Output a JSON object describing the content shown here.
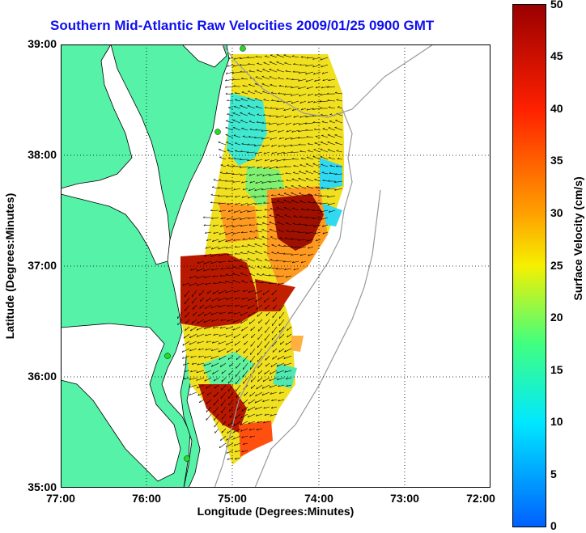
{
  "title": "Southern Mid-Atlantic Raw Velocities 2009/01/25 0900 GMT",
  "x_axis": {
    "label": "Longitude (Degrees:Minutes)",
    "ticks": [
      "77:00",
      "76:00",
      "75:00",
      "74:00",
      "73:00",
      "72:00"
    ]
  },
  "y_axis": {
    "label": "Latitude (Degrees:Minutes)",
    "ticks": [
      "39:00",
      "38:00",
      "37:00",
      "36:00",
      "35:00"
    ]
  },
  "colorbar": {
    "label": "Surface Velocity (cm/s)",
    "ticks": [
      "50",
      "45",
      "40",
      "35",
      "30",
      "25",
      "20",
      "15",
      "10",
      "5",
      "0"
    ],
    "range": [
      0,
      50
    ]
  },
  "colors": {
    "land": "#55f2a7",
    "water": "#ffffff",
    "title": "#1010ee",
    "isobath": "#999999",
    "station": "#22dd22"
  },
  "map": {
    "lon_range": [
      -77,
      -72
    ],
    "lat_range": [
      35,
      39
    ],
    "grid": "dotted"
  }
}
